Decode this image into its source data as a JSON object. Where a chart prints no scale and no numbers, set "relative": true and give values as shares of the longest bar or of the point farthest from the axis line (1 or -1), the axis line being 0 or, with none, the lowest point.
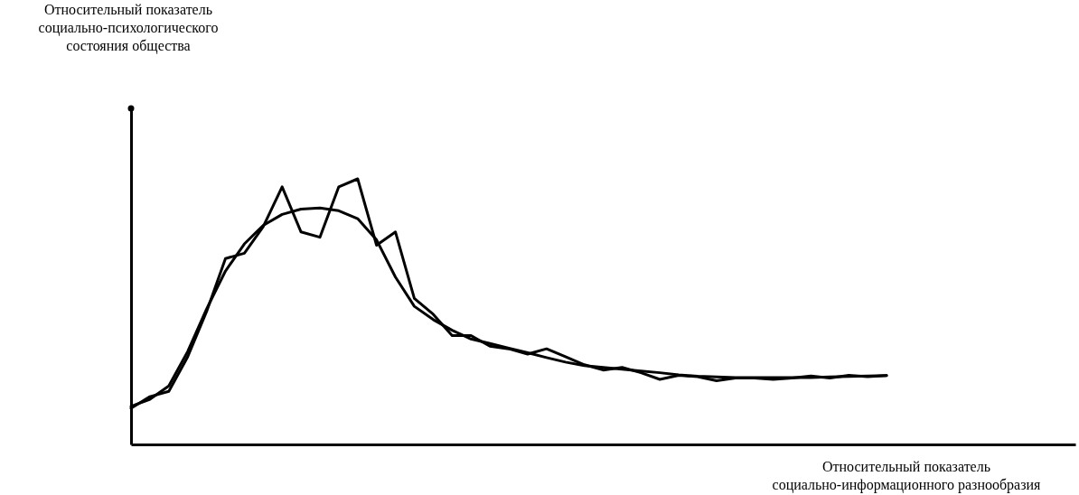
{
  "chart_data": {
    "type": "line",
    "annotations": [
      "Относительный показатель\nсоциально-психологического\nсостояния общества"
    ],
    "xlabel": "Относительный показатель\nсоциально-информационного разнообразия",
    "relative": true,
    "categories": [
      null,
      null,
      null,
      null,
      null,
      null,
      null,
      null,
      null,
      null,
      null,
      null,
      null,
      null,
      null,
      null,
      null,
      null,
      null,
      null,
      null,
      null,
      null,
      null,
      null,
      null,
      null,
      null,
      null,
      null,
      null,
      null,
      null,
      null,
      null,
      null,
      null,
      null,
      null,
      null,
      null,
      null,
      null,
      null,
      null,
      null,
      null,
      null,
      null,
      null,
      null
    ],
    "series": [
      {
        "color": "#000000",
        "values": [
          0.143,
          0.17,
          0.22,
          0.35,
          0.51,
          0.653,
          0.755,
          0.825,
          0.866,
          0.886,
          0.89,
          0.88,
          0.85,
          0.77,
          0.63,
          0.52,
          0.47,
          0.43,
          0.397,
          0.38,
          0.362,
          0.345,
          0.327,
          0.31,
          0.297,
          0.29,
          0.283,
          0.276,
          0.27,
          0.262,
          0.257,
          0.254,
          0.252,
          0.252,
          0.252,
          0.252,
          0.252,
          0.254,
          0.256,
          0.258,
          0.259,
          null,
          null,
          null,
          null,
          null,
          null,
          null,
          null,
          null,
          null
        ]
      },
      {
        "color": "#000000",
        "values": [
          0.136,
          0.18,
          0.2,
          0.33,
          0.5,
          0.7,
          0.72,
          0.82,
          0.97,
          0.8,
          0.78,
          0.97,
          1,
          0.75,
          0.8,
          0.55,
          0.49,
          0.41,
          0.41,
          0.37,
          0.36,
          0.34,
          0.36,
          0.33,
          0.3,
          0.28,
          0.29,
          0.27,
          0.245,
          0.26,
          0.255,
          0.24,
          0.25,
          0.25,
          0.245,
          0.25,
          0.258,
          0.25,
          0.26,
          0.255,
          0.259,
          null,
          null,
          null,
          null,
          null,
          null,
          null,
          null,
          null,
          null
        ]
      }
    ]
  }
}
